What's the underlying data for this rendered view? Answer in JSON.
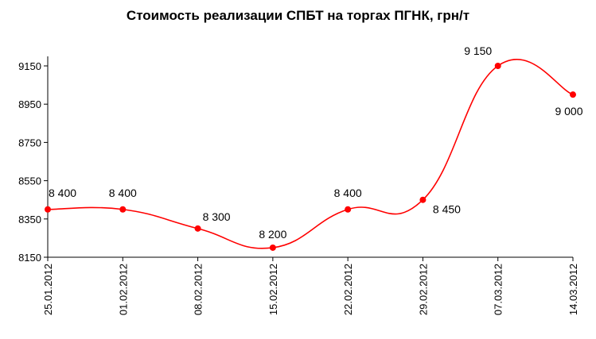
{
  "chart_data": {
    "type": "line",
    "title": "Стоимость реализации СПБТ на торгах ПГНК, грн/т",
    "xlabel": "",
    "ylabel": "",
    "categories": [
      "25.01.2012",
      "01.02.2012",
      "08.02.2012",
      "15.02.2012",
      "22.02.2012",
      "29.02.2012",
      "07.03.2012",
      "14.03.2012"
    ],
    "series": [
      {
        "values": [
          8400,
          8400,
          8300,
          8200,
          8400,
          8450,
          9150,
          9000
        ],
        "labels": [
          "8 400",
          "8 400",
          "8 300",
          "8 200",
          "8 400",
          "8 450",
          "9 150",
          "9 000"
        ],
        "color": "#ff0000"
      }
    ],
    "yticks": [
      "8150",
      "8350",
      "8550",
      "8750",
      "8950",
      "9150"
    ],
    "ylim": [
      8150,
      9150
    ],
    "grid": false,
    "legend": "none",
    "smooth": true
  }
}
